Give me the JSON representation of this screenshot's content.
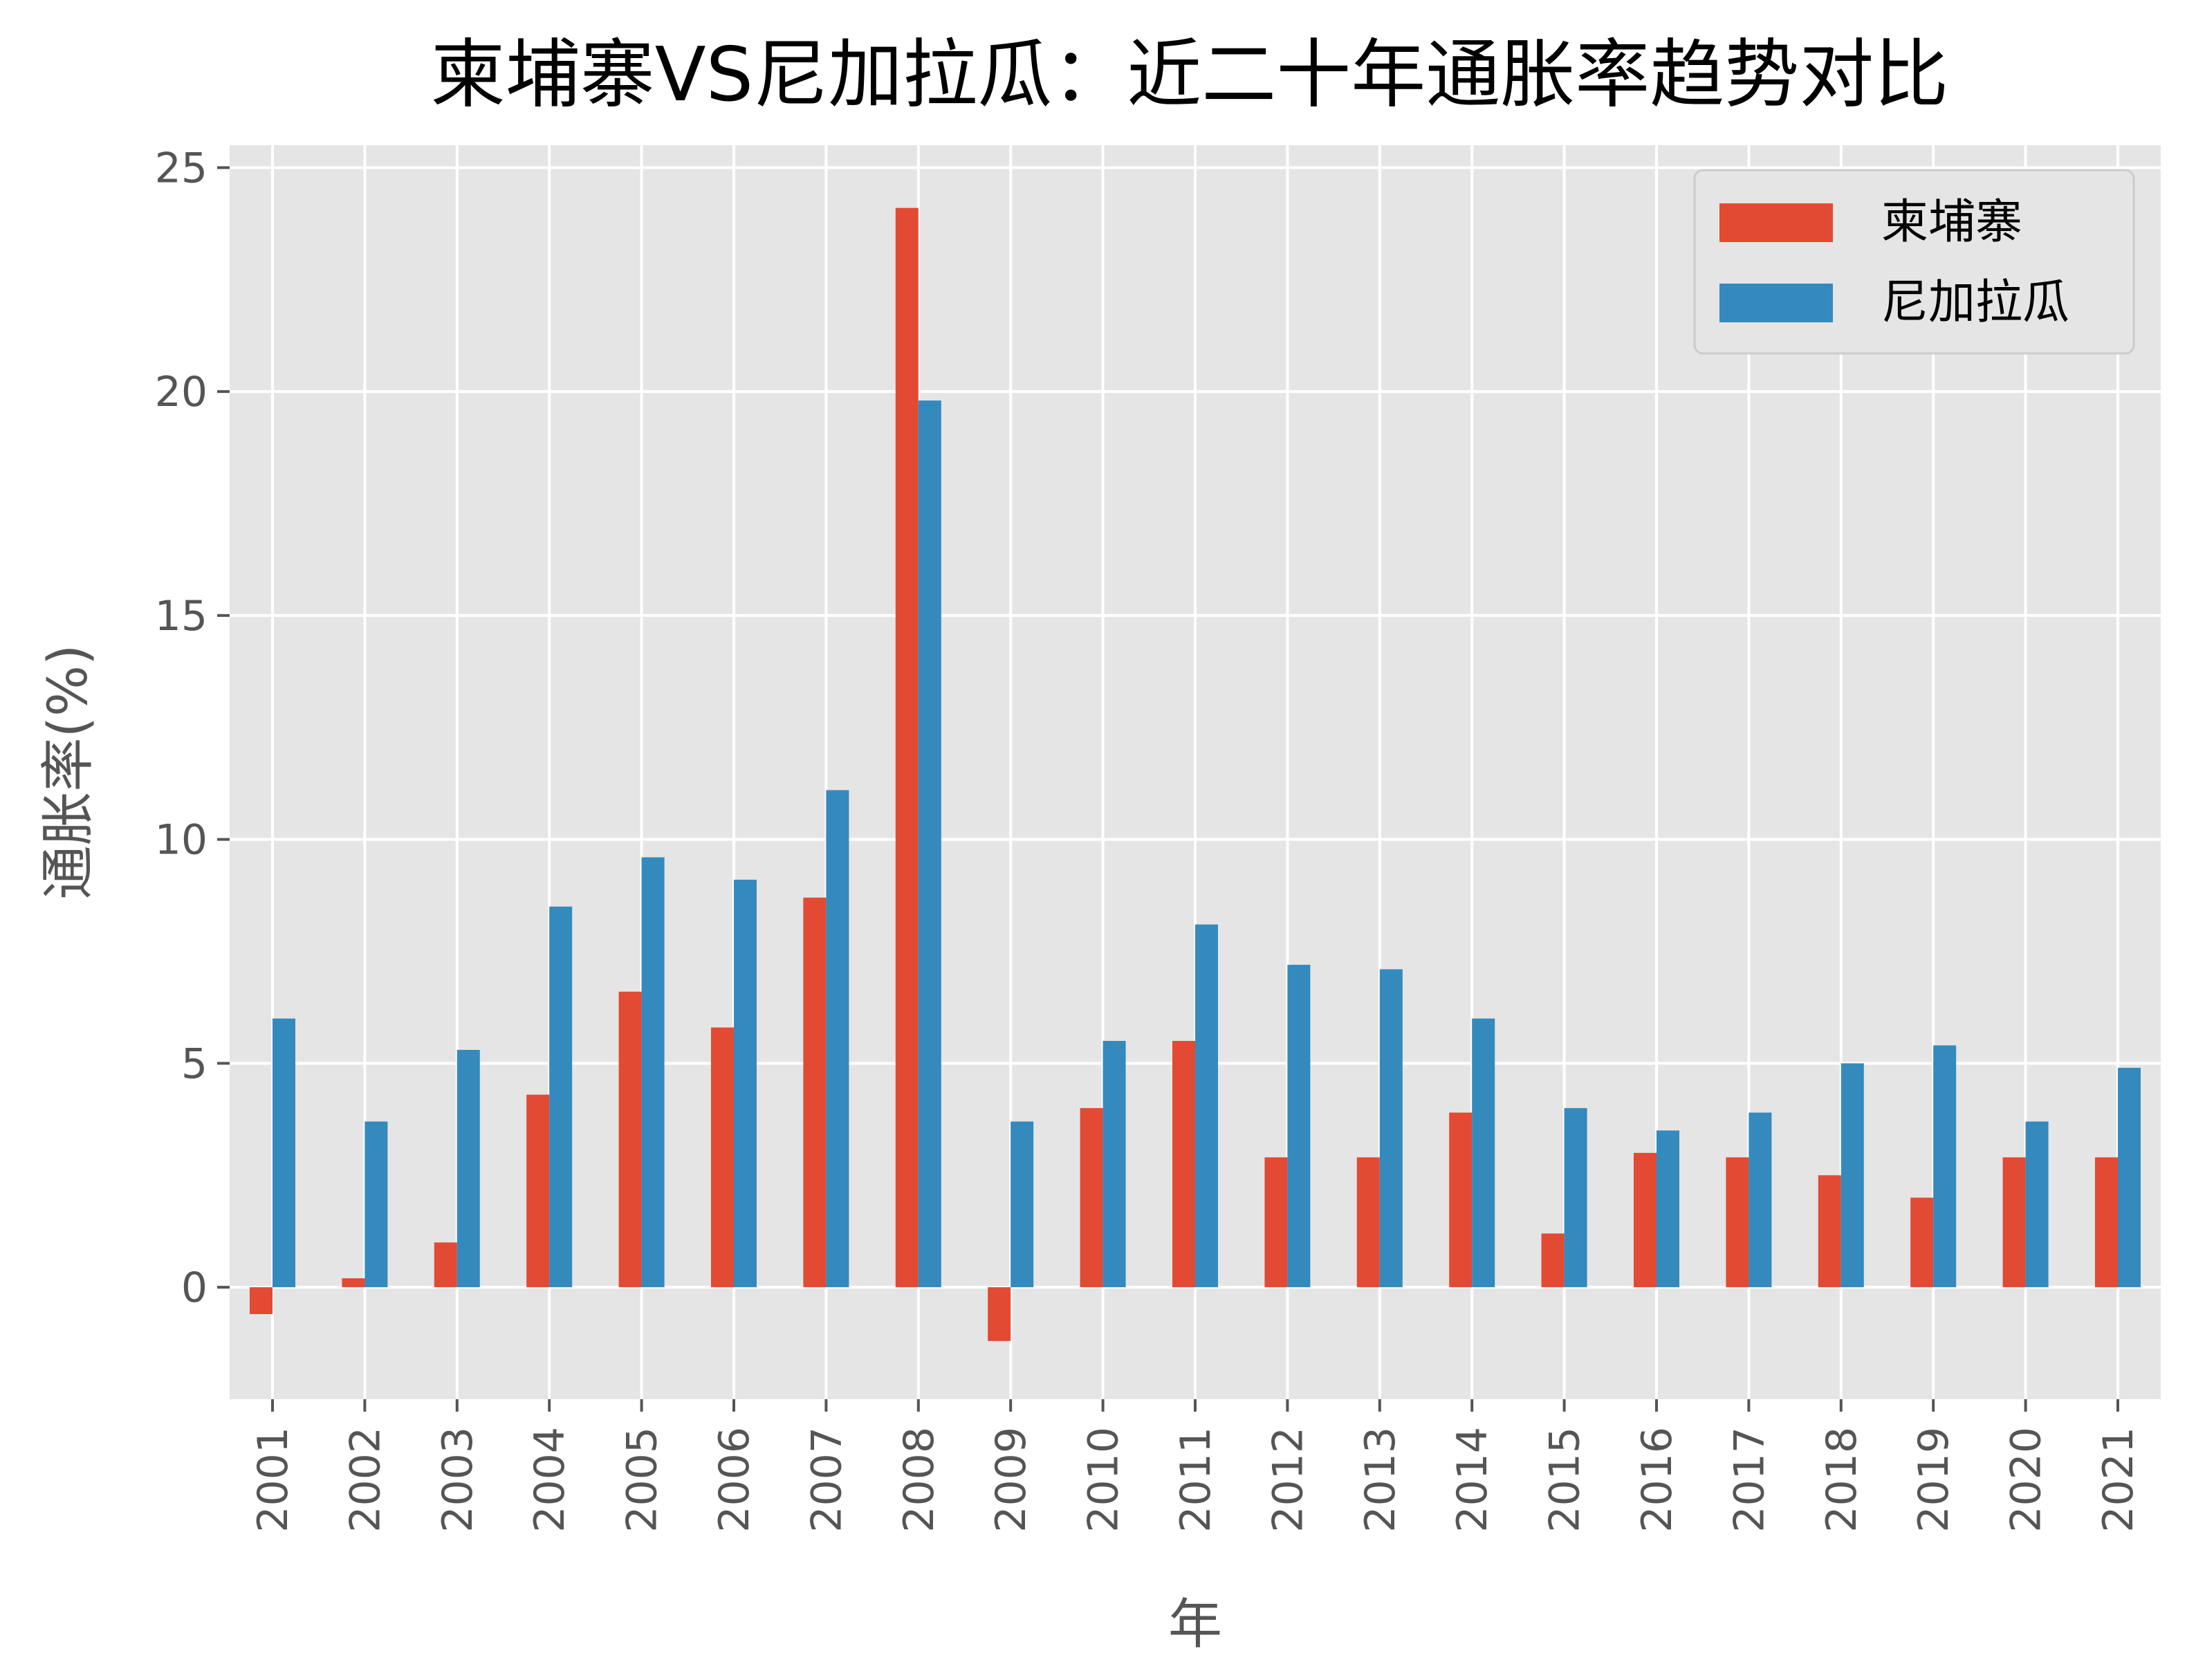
{
  "chart_data": {
    "type": "bar",
    "title": "柬埔寨VS尼加拉瓜：近二十年通胀率趋势对比",
    "xlabel": "年",
    "ylabel": "通胀率(%)",
    "ylim": [
      -2.5,
      25.5
    ],
    "yticks": [
      0,
      5,
      10,
      15,
      20,
      25
    ],
    "grid": true,
    "legend_position": "top-right",
    "categories": [
      "2001",
      "2002",
      "2003",
      "2004",
      "2005",
      "2006",
      "2007",
      "2008",
      "2009",
      "2010",
      "2011",
      "2012",
      "2013",
      "2014",
      "2015",
      "2016",
      "2017",
      "2018",
      "2019",
      "2020",
      "2021"
    ],
    "series": [
      {
        "name": "柬埔寨",
        "color": "#E24A33",
        "values": [
          -0.6,
          0.2,
          1.0,
          4.3,
          6.6,
          5.8,
          8.7,
          24.1,
          -1.2,
          4.0,
          5.5,
          2.9,
          2.9,
          3.9,
          1.2,
          3.0,
          2.9,
          2.5,
          2.0,
          2.9,
          2.9
        ]
      },
      {
        "name": "尼加拉瓜",
        "color": "#348ABD",
        "values": [
          6.0,
          3.7,
          5.3,
          8.5,
          9.6,
          9.1,
          11.1,
          19.8,
          3.7,
          5.5,
          8.1,
          7.2,
          7.1,
          6.0,
          4.0,
          3.5,
          3.9,
          5.0,
          5.4,
          3.7,
          4.9
        ]
      }
    ]
  }
}
